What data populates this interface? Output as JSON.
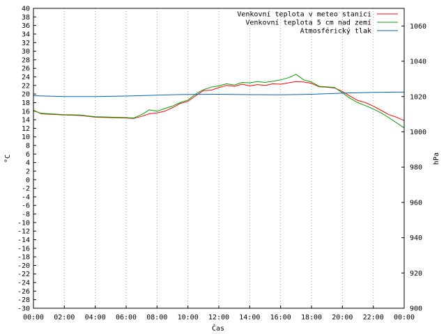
{
  "chart_data": {
    "type": "line",
    "xlabel": "Čas",
    "ylabel_left": "°C",
    "ylabel_right": "hPa",
    "x_ticks": [
      "00:00",
      "02:00",
      "04:00",
      "06:00",
      "08:00",
      "10:00",
      "12:00",
      "14:00",
      "16:00",
      "18:00",
      "20:00",
      "22:00",
      "00:00"
    ],
    "x_range_hours": [
      0,
      24
    ],
    "y_left_range": [
      -30,
      40
    ],
    "y_left_step": 2,
    "y_right_range": [
      900,
      1070
    ],
    "y_right_ticks": [
      900,
      920,
      940,
      960,
      980,
      1000,
      1020,
      1040,
      1060
    ],
    "legend_position": "top-right",
    "series": [
      {
        "name": "Venkovní teplota v meteo stanici",
        "axis": "left",
        "color": "#ff0000",
        "x": [
          0,
          0.5,
          1,
          2,
          3,
          4,
          5,
          6,
          6.5,
          7,
          7.5,
          8,
          8.5,
          9,
          9.5,
          10,
          10.5,
          11,
          11.5,
          12,
          12.5,
          13,
          13.5,
          14,
          14.5,
          15,
          15.5,
          16,
          16.5,
          17,
          17.5,
          18,
          18.5,
          19,
          19.5,
          20,
          20.5,
          21,
          21.5,
          22,
          22.5,
          23,
          23.5,
          24
        ],
        "values": [
          16.2,
          15.4,
          15.3,
          15.1,
          15.0,
          14.6,
          14.5,
          14.4,
          14.3,
          14.8,
          15.4,
          15.6,
          16.0,
          16.8,
          17.8,
          18.3,
          19.6,
          20.8,
          20.9,
          21.5,
          22.0,
          21.8,
          22.3,
          21.9,
          22.2,
          22.0,
          22.4,
          22.3,
          22.6,
          22.9,
          22.8,
          22.5,
          21.7,
          21.6,
          21.4,
          20.6,
          19.5,
          18.5,
          18.0,
          17.2,
          16.2,
          15.2,
          14.6,
          13.8
        ]
      },
      {
        "name": "Venkovní teplota 5 cm nad zemí",
        "axis": "left",
        "color": "#00a000",
        "x": [
          0,
          0.5,
          1,
          2,
          3,
          4,
          5,
          6,
          6.5,
          7,
          7.5,
          8,
          8.5,
          9,
          9.5,
          10,
          10.5,
          11,
          11.5,
          12,
          12.5,
          13,
          13.5,
          14,
          14.5,
          15,
          15.5,
          16,
          16.5,
          17,
          17.5,
          18,
          18.5,
          19,
          19.5,
          20,
          20.5,
          21,
          21.5,
          22,
          22.5,
          23,
          23.5,
          24
        ],
        "values": [
          16.1,
          15.5,
          15.4,
          15.2,
          15.1,
          14.7,
          14.6,
          14.5,
          14.4,
          15.2,
          16.3,
          16.0,
          16.6,
          17.2,
          18.0,
          18.6,
          20.0,
          21.0,
          21.6,
          21.9,
          22.4,
          22.1,
          22.7,
          22.6,
          22.9,
          22.7,
          23.0,
          23.3,
          23.8,
          24.6,
          23.3,
          22.8,
          21.8,
          21.7,
          21.5,
          20.3,
          19.0,
          18.0,
          17.3,
          16.5,
          15.6,
          14.5,
          13.3,
          12.1
        ]
      },
      {
        "name": "Atmosférický tlak",
        "axis": "right",
        "color": "#0060c0",
        "x": [
          0,
          2,
          4,
          6,
          8,
          10,
          12,
          14,
          16,
          18,
          20,
          22,
          24
        ],
        "values": [
          1020.5,
          1020.0,
          1020.0,
          1020.3,
          1020.8,
          1021.2,
          1021.3,
          1021.1,
          1021.0,
          1021.3,
          1021.9,
          1022.4,
          1022.6
        ]
      }
    ]
  }
}
